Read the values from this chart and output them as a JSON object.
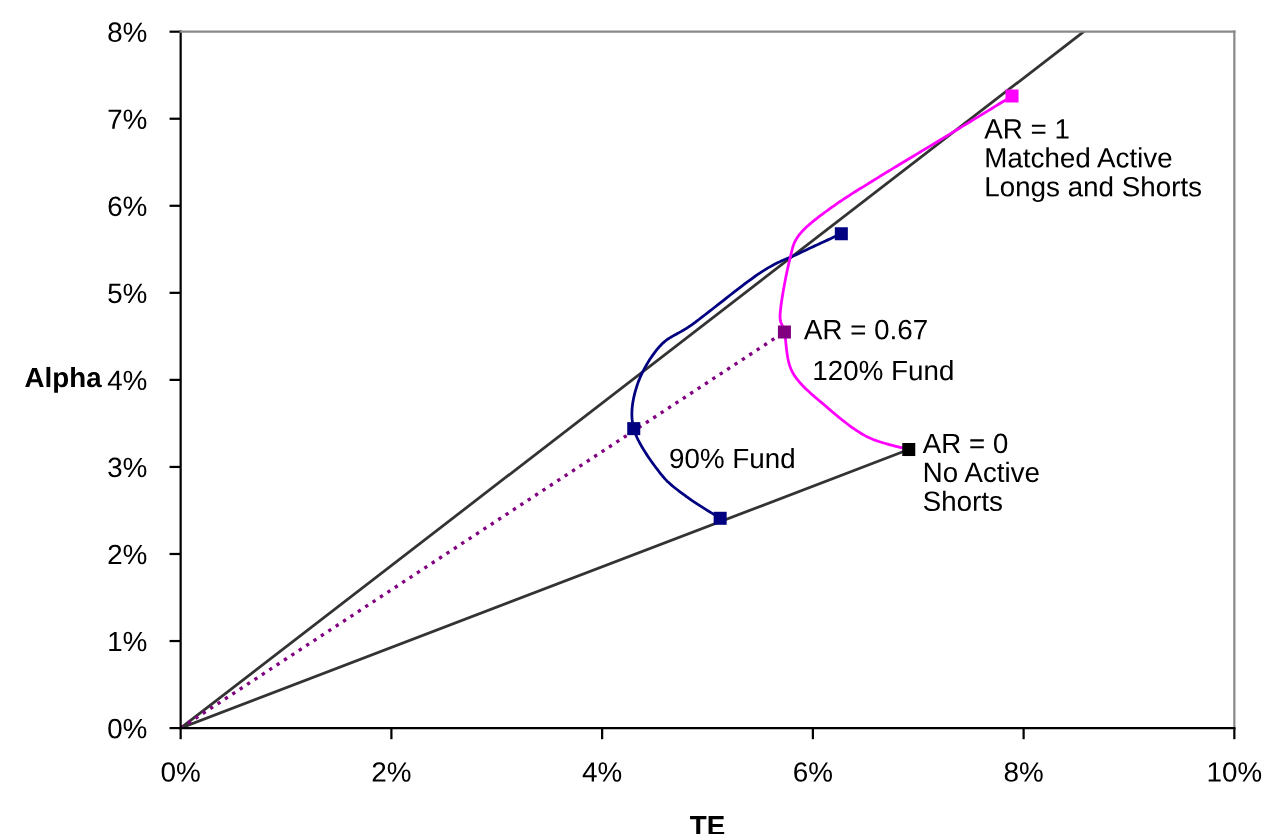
{
  "chart_data": {
    "type": "line",
    "xlabel": "TE",
    "ylabel": "Alpha",
    "xlim": [
      0,
      10
    ],
    "ylim": [
      0,
      8
    ],
    "xticks": [
      {
        "value": 0,
        "label": "0%"
      },
      {
        "value": 2,
        "label": "2%"
      },
      {
        "value": 4,
        "label": "4%"
      },
      {
        "value": 6,
        "label": "6%"
      },
      {
        "value": 8,
        "label": "8%"
      },
      {
        "value": 10,
        "label": "10%"
      }
    ],
    "yticks": [
      {
        "value": 0,
        "label": "0%"
      },
      {
        "value": 1,
        "label": "1%"
      },
      {
        "value": 2,
        "label": "2%"
      },
      {
        "value": 3,
        "label": "3%"
      },
      {
        "value": 4,
        "label": "4%"
      },
      {
        "value": 5,
        "label": "5%"
      },
      {
        "value": 6,
        "label": "6%"
      },
      {
        "value": 7,
        "label": "7%"
      },
      {
        "value": 8,
        "label": "8%"
      }
    ],
    "series": [
      {
        "color": "#333333",
        "x": [
          0,
          8.57
        ],
        "values": [
          0,
          8
        ],
        "marker": "none",
        "line_style": "solid"
      },
      {
        "color": "#333333",
        "x": [
          0,
          6.91
        ],
        "values": [
          0,
          3.2
        ],
        "marker": "none",
        "line_style": "solid"
      },
      {
        "color": "#800080",
        "x": [
          0,
          5.73
        ],
        "values": [
          0,
          4.55
        ],
        "marker": "none",
        "line_style": "dotted"
      },
      {
        "color": "#000080",
        "x": [
          6.27,
          5.88,
          5.5,
          4.87,
          4.55,
          4.33,
          4.3,
          4.55,
          4.8,
          5.12
        ],
        "values": [
          5.68,
          5.46,
          5.23,
          4.65,
          4.39,
          3.93,
          3.44,
          2.93,
          2.66,
          2.41
        ],
        "marker": "none",
        "line_style": "solid"
      },
      {
        "color": "#ff00ff",
        "x": [
          7.89,
          7.2,
          6.64,
          6.2,
          5.88,
          5.78,
          5.69,
          5.73,
          5.81,
          6.13,
          6.51,
          6.91
        ],
        "values": [
          7.26,
          6.75,
          6.34,
          6.0,
          5.68,
          5.38,
          4.77,
          4.55,
          4.08,
          3.69,
          3.35,
          3.2
        ],
        "marker": "none",
        "line_style": "solid"
      },
      {
        "type": "scatter",
        "color": "#000080",
        "x": [
          6.27,
          4.3,
          5.12
        ],
        "values": [
          5.68,
          3.44,
          2.41
        ],
        "marker": "square"
      },
      {
        "type": "scatter",
        "color": "#ff00ff",
        "x": [
          7.89
        ],
        "values": [
          7.26
        ],
        "marker": "square"
      },
      {
        "type": "scatter",
        "color": "#800080",
        "x": [
          5.73
        ],
        "values": [
          4.55
        ],
        "marker": "square"
      },
      {
        "type": "scatter",
        "color": "#000000",
        "x": [
          6.91
        ],
        "values": [
          3.2
        ],
        "marker": "square"
      }
    ],
    "annotations": [
      {
        "text": "AR = 1\nMatched Active\nLongs and Shorts",
        "x": 7.89,
        "y": 7.26
      },
      {
        "text": "AR = 0.67",
        "x": 5.73,
        "y": 4.55
      },
      {
        "text": "120% Fund",
        "x": 5.81,
        "y": 4.08
      },
      {
        "text": "AR = 0\nNo Active\nShorts",
        "x": 6.91,
        "y": 3.2
      },
      {
        "text": "90% Fund",
        "x": 4.45,
        "y": 3.07
      }
    ]
  }
}
